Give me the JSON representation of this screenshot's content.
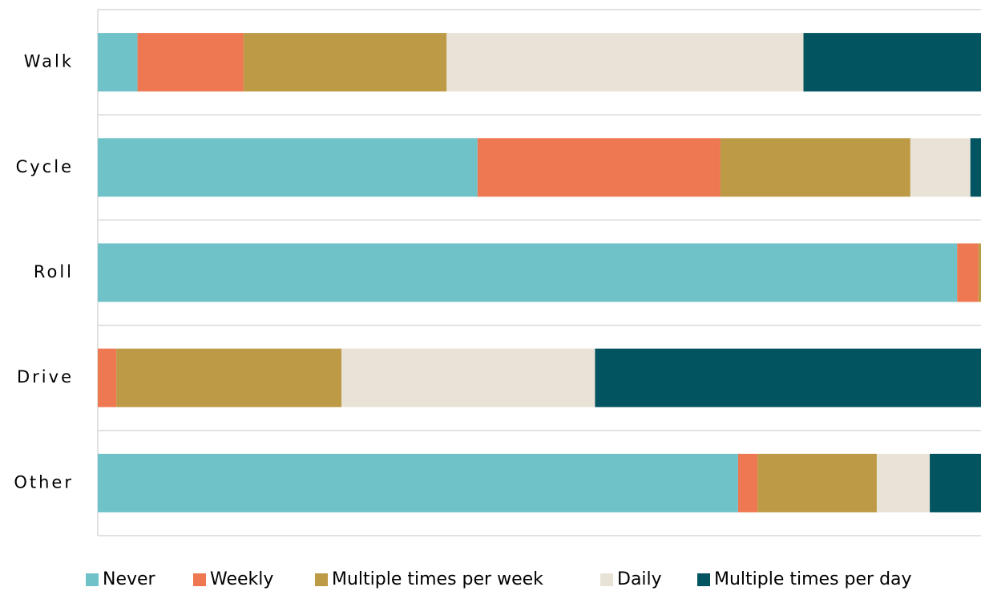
{
  "chart_data": {
    "type": "bar",
    "orientation": "horizontal",
    "stacked": true,
    "categories": [
      "Walk",
      "Cycle",
      "Roll",
      "Drive",
      "Other"
    ],
    "series": [
      {
        "name": "Never",
        "color": "#6fc2c7",
        "values": [
          4.5,
          43,
          97.3,
          0,
          72.5
        ]
      },
      {
        "name": "Weekly",
        "color": "#ee7852",
        "values": [
          12,
          27.5,
          2.4,
          2.1,
          2.2
        ]
      },
      {
        "name": "Multiple times per week",
        "color": "#bd9a45",
        "values": [
          23,
          21.5,
          0.3,
          25.5,
          13.5
        ]
      },
      {
        "name": "Daily",
        "color": "#e9e3d7",
        "values": [
          40.4,
          6.8,
          0,
          28.7,
          6
        ]
      },
      {
        "name": "Multiple times per day",
        "color": "#025560",
        "values": [
          20.1,
          1.2,
          0,
          43.7,
          5.8
        ]
      }
    ],
    "xlim": [
      0,
      100
    ],
    "legend": "bottom"
  }
}
